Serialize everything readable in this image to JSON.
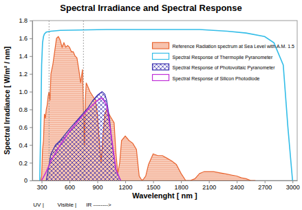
{
  "chart_data": {
    "type": "line",
    "title": "Spectral Irradiance and Spectral Response",
    "x_label": "Wavelenght [ nm ]",
    "y_label": "Spectral Irradiance [ W/m² / nm]",
    "xlim": [
      200,
      3050
    ],
    "ylim": [
      0,
      1.8
    ],
    "xticks": [
      300,
      600,
      900,
      1200,
      1500,
      1800,
      2100,
      2400,
      2700,
      3000
    ],
    "yticks": [
      0,
      0.2,
      0.4,
      0.6,
      0.8,
      {
        "value": 1,
        "label": "1.0"
      },
      1.2,
      1.4,
      1.6,
      1.8
    ],
    "grid": false,
    "legend": "upper right",
    "region_bounds": [
      380,
      750
    ],
    "annotations": [
      {
        "text": "UV |",
        "x": 210
      },
      {
        "text": "Visible |",
        "x": 470
      },
      {
        "text": "IR -------->",
        "x": 780
      }
    ],
    "series": [
      {
        "name": "Reference Radiation spectrum at Sea Level with A.M. 1.5",
        "color": "#e8632e",
        "type": "area",
        "x": [
          290,
          300,
          310,
          320,
          330,
          340,
          350,
          360,
          370,
          380,
          390,
          400,
          420,
          440,
          460,
          480,
          500,
          520,
          540,
          560,
          580,
          600,
          620,
          640,
          660,
          680,
          700,
          720,
          740,
          760,
          770,
          780,
          800,
          820,
          850,
          880,
          900,
          920,
          940,
          960,
          980,
          1000,
          1040,
          1080,
          1100,
          1120,
          1140,
          1160,
          1200,
          1240,
          1280,
          1320,
          1350,
          1380,
          1400,
          1420,
          1450,
          1500,
          1550,
          1600,
          1650,
          1700,
          1750,
          1800,
          1850,
          1900,
          1950,
          2000,
          2050,
          2100,
          2150,
          2200,
          2250,
          2300,
          2350,
          2400,
          2450,
          2500,
          2550,
          2600
        ],
        "values": [
          0,
          0.05,
          0.35,
          0.45,
          0.75,
          0.7,
          0.8,
          0.85,
          0.95,
          1.0,
          0.9,
          1.2,
          1.3,
          1.45,
          1.6,
          1.62,
          1.58,
          1.5,
          1.55,
          1.5,
          1.52,
          1.5,
          1.45,
          1.45,
          1.4,
          1.38,
          1.25,
          1.1,
          1.25,
          0.4,
          0.9,
          1.1,
          1.05,
          1.0,
          0.95,
          0.9,
          0.75,
          0.45,
          0.2,
          0.5,
          0.75,
          0.8,
          0.72,
          0.65,
          0.3,
          0.08,
          0.2,
          0.45,
          0.5,
          0.45,
          0.42,
          0.35,
          0.05,
          0.0,
          0.02,
          0.05,
          0.18,
          0.3,
          0.28,
          0.28,
          0.25,
          0.22,
          0.18,
          0.08,
          0.0,
          0.0,
          0.02,
          0.08,
          0.1,
          0.1,
          0.1,
          0.09,
          0.08,
          0.07,
          0.06,
          0.05,
          0.03,
          0.02,
          0.0,
          0.0
        ]
      },
      {
        "name": "Spectral Response of Thermopile Pyranometer",
        "color": "#33bde8",
        "type": "line",
        "x": [
          280,
          290,
          300,
          310,
          320,
          330,
          350,
          400,
          500,
          1000,
          1500,
          2000,
          2300,
          2500,
          2700,
          2800,
          2900,
          2950,
          3000
        ],
        "values": [
          0,
          0.6,
          1.3,
          1.55,
          1.62,
          1.65,
          1.67,
          1.68,
          1.69,
          1.7,
          1.7,
          1.7,
          1.68,
          1.66,
          1.62,
          1.55,
          1.3,
          0.6,
          0
        ]
      },
      {
        "name": "Spectral Response of Photovoltaic Pyranometer",
        "color": "#3a2fb0",
        "type": "area",
        "x": [
          350,
          400,
          450,
          500,
          600,
          700,
          800,
          850,
          900,
          950,
          980,
          1000,
          1030,
          1060,
          1100,
          1150
        ],
        "values": [
          0,
          0.3,
          0.4,
          0.45,
          0.58,
          0.7,
          0.82,
          0.9,
          0.96,
          1.0,
          0.97,
          0.9,
          0.7,
          0.4,
          0.12,
          0
        ]
      },
      {
        "name": "Spectral Response of Silicon Photodiode",
        "color": "#c030d8",
        "type": "line",
        "x": [
          300,
          350,
          400,
          500,
          600,
          700,
          800,
          900,
          950,
          1000,
          1050,
          1100,
          1150
        ],
        "values": [
          0,
          0.1,
          0.22,
          0.4,
          0.55,
          0.68,
          0.8,
          0.9,
          0.93,
          0.85,
          0.5,
          0.12,
          0
        ]
      }
    ]
  }
}
